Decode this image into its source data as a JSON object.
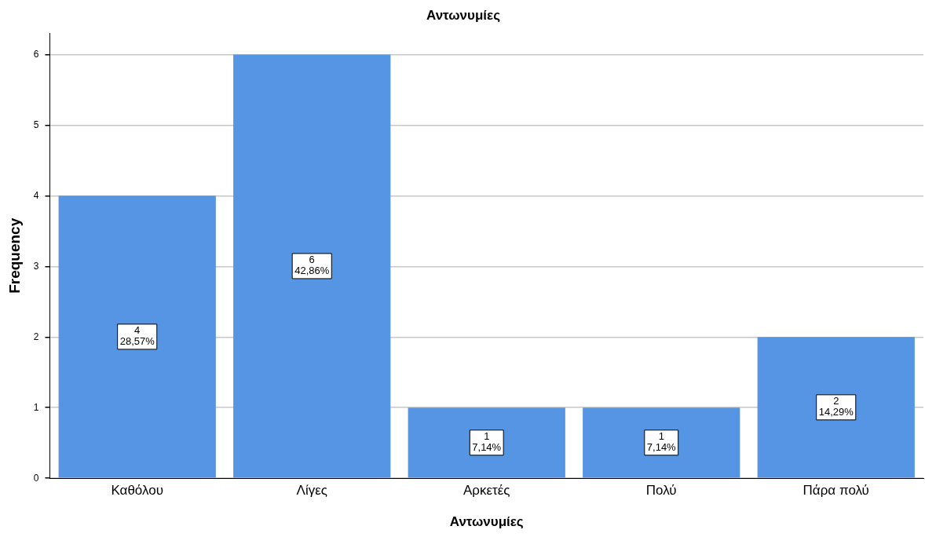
{
  "chart_data": {
    "type": "bar",
    "title": "Αντωνυμίες",
    "xlabel": "Αντωνυμίες",
    "ylabel": "Frequency",
    "categories": [
      "Καθόλου",
      "Λίγες",
      "Αρκετές",
      "Πολύ",
      "Πάρα πολύ"
    ],
    "values": [
      4,
      6,
      1,
      1,
      2
    ],
    "value_labels": [
      "4\n28,57%",
      "6\n42,86%",
      "1\n7,14%",
      "1\n7,14%",
      "2\n14,29%"
    ],
    "color": "#5595e3",
    "ylim": [
      0,
      6.3
    ],
    "yticks": [
      0,
      1,
      2,
      3,
      4,
      5,
      6
    ],
    "grid": "y",
    "legend": false
  }
}
